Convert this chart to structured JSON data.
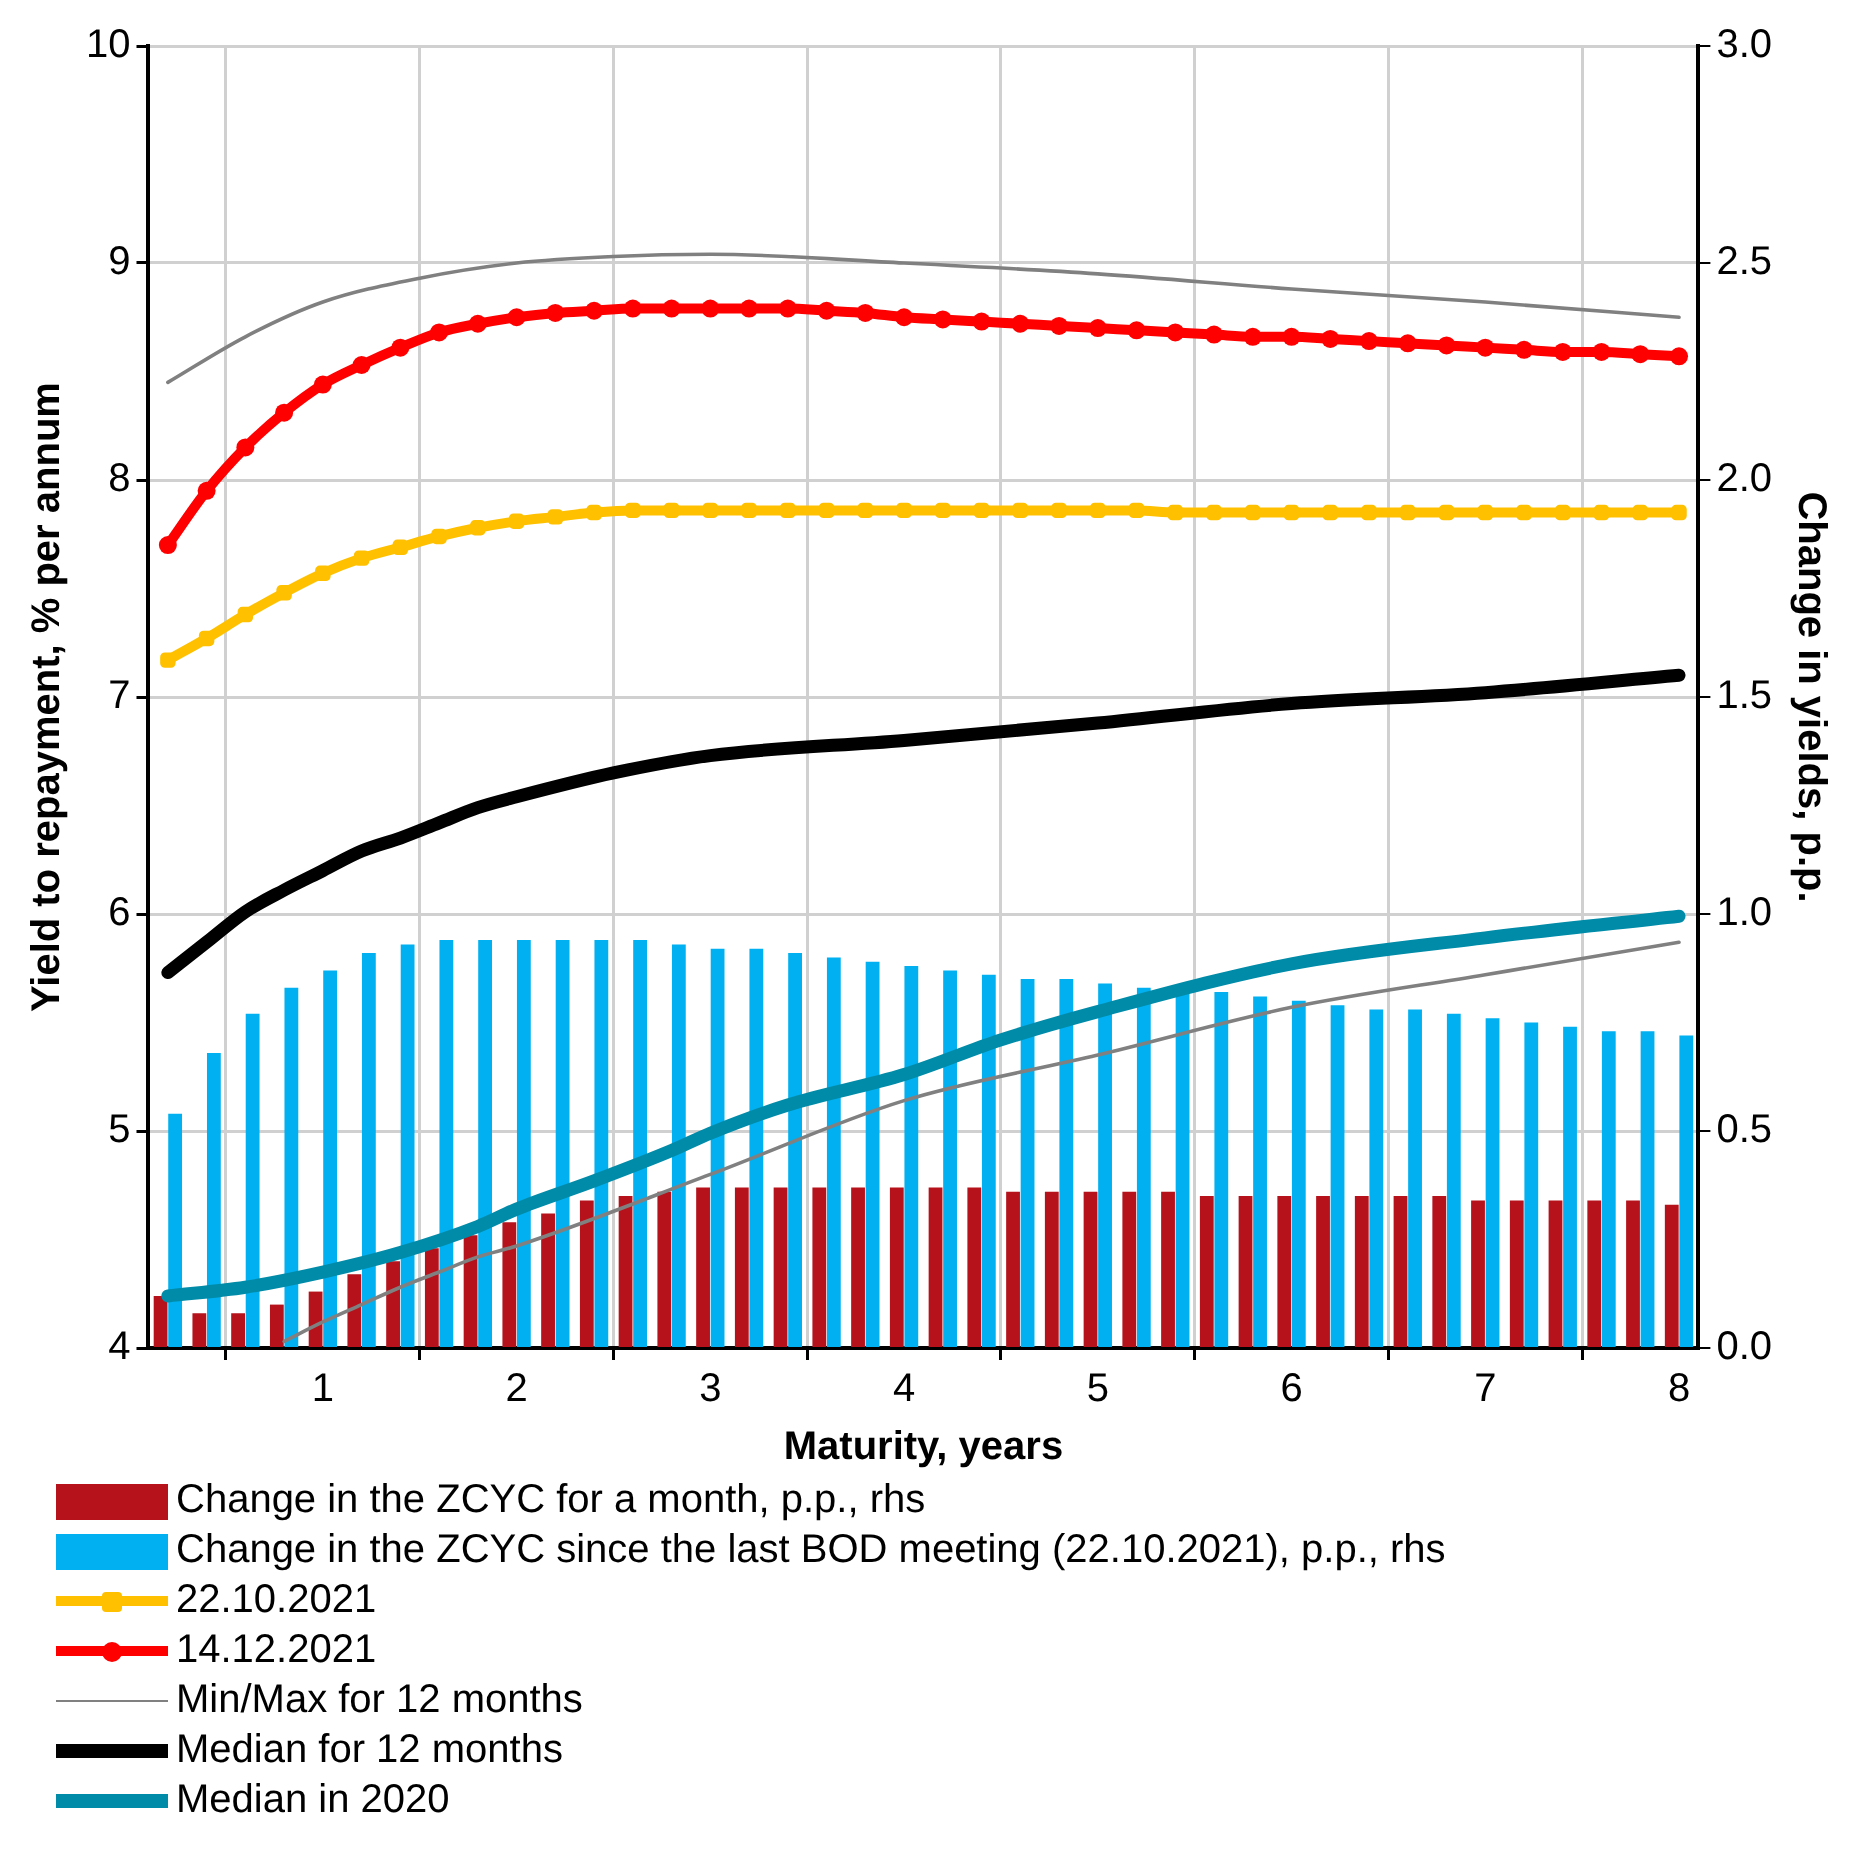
{
  "chart_data": {
    "type": "line",
    "xlabel": "Maturity, years",
    "ylabel": "Yield to repayment, % per annum",
    "y2label": "Change in yields, p.p.",
    "x": [
      0.2,
      0.4,
      0.6,
      0.8,
      1.0,
      1.2,
      1.4,
      1.6,
      1.8,
      2.0,
      2.2,
      2.4,
      2.6,
      2.8,
      3.0,
      3.2,
      3.4,
      3.6,
      3.8,
      4.0,
      4.2,
      4.4,
      4.6,
      4.8,
      5.0,
      5.2,
      5.4,
      5.6,
      5.8,
      6.0,
      6.2,
      6.4,
      6.6,
      6.8,
      7.0,
      7.2,
      7.4,
      7.6,
      7.8,
      8.0
    ],
    "xlim": [
      0.1,
      8.1
    ],
    "xticks": [
      1,
      2,
      3,
      4,
      5,
      6,
      7,
      8
    ],
    "ylim": [
      4,
      10
    ],
    "yticks": [
      4,
      5,
      6,
      7,
      8,
      9,
      10
    ],
    "y2lim": [
      0,
      3
    ],
    "y2ticks": [
      {
        "value": 0,
        "label": "0.0"
      },
      {
        "value": 0.5,
        "label": "0.5"
      },
      {
        "value": 1,
        "label": "1.0"
      },
      {
        "value": 1.5,
        "label": "1.5"
      },
      {
        "value": 2,
        "label": "2.0"
      },
      {
        "value": 2.5,
        "label": "2.5"
      },
      {
        "value": 3,
        "label": "3.0"
      }
    ],
    "grid": true,
    "legend": "bottom",
    "series": [
      {
        "name": "Change in the ZCYC for a month, p.p., rhs",
        "type": "bar",
        "axis": "y2",
        "color": "#b5121b",
        "values": [
          0.12,
          0.08,
          0.08,
          0.1,
          0.13,
          0.17,
          0.2,
          0.23,
          0.26,
          0.29,
          0.31,
          0.34,
          0.35,
          0.36,
          0.37,
          0.37,
          0.37,
          0.37,
          0.37,
          0.37,
          0.37,
          0.37,
          0.36,
          0.36,
          0.36,
          0.36,
          0.36,
          0.35,
          0.35,
          0.35,
          0.35,
          0.35,
          0.35,
          0.35,
          0.34,
          0.34,
          0.34,
          0.34,
          0.34,
          0.33
        ]
      },
      {
        "name": "Change in the ZCYC since the last BOD meeting (22.10.2021), p.p., rhs",
        "type": "bar",
        "axis": "y2",
        "color": "#00b0f0",
        "values": [
          0.54,
          0.68,
          0.77,
          0.83,
          0.87,
          0.91,
          0.93,
          0.94,
          0.94,
          0.94,
          0.94,
          0.94,
          0.94,
          0.93,
          0.92,
          0.92,
          0.91,
          0.9,
          0.89,
          0.88,
          0.87,
          0.86,
          0.85,
          0.85,
          0.84,
          0.83,
          0.82,
          0.82,
          0.81,
          0.8,
          0.79,
          0.78,
          0.78,
          0.77,
          0.76,
          0.75,
          0.74,
          0.73,
          0.73,
          0.72
        ]
      },
      {
        "name": "22.10.2021",
        "marker": "square",
        "color": "#ffc000",
        "values": [
          7.17,
          7.27,
          7.38,
          7.48,
          7.57,
          7.64,
          7.69,
          7.74,
          7.78,
          7.81,
          7.83,
          7.85,
          7.86,
          7.86,
          7.86,
          7.86,
          7.86,
          7.86,
          7.86,
          7.86,
          7.86,
          7.86,
          7.86,
          7.86,
          7.86,
          7.86,
          7.85,
          7.85,
          7.85,
          7.85,
          7.85,
          7.85,
          7.85,
          7.85,
          7.85,
          7.85,
          7.85,
          7.85,
          7.85,
          7.85
        ]
      },
      {
        "name": "14.12.2021",
        "marker": "circle",
        "color": "#ff0000",
        "values": [
          7.7,
          7.95,
          8.15,
          8.31,
          8.44,
          8.53,
          8.61,
          8.68,
          8.72,
          8.75,
          8.77,
          8.78,
          8.79,
          8.79,
          8.79,
          8.79,
          8.79,
          8.78,
          8.77,
          8.75,
          8.74,
          8.73,
          8.72,
          8.71,
          8.7,
          8.69,
          8.68,
          8.67,
          8.66,
          8.66,
          8.65,
          8.64,
          8.63,
          8.62,
          8.61,
          8.6,
          8.59,
          8.59,
          8.58,
          8.57
        ]
      },
      {
        "name": "Min/Max for 12 months",
        "color": "#808080",
        "x": [
          0.2,
          0.6,
          1,
          1.5,
          2,
          2.5,
          3,
          4,
          5,
          6,
          7,
          8
        ],
        "values": [
          8.45,
          8.66,
          8.82,
          8.93,
          9.0,
          9.03,
          9.04,
          9.0,
          8.95,
          8.88,
          8.82,
          8.75
        ]
      },
      {
        "color": "#808080",
        "x": [
          0.8,
          1,
          1.2,
          1.4,
          1.6,
          1.8,
          2,
          3,
          4,
          5,
          6,
          7,
          8
        ],
        "values": [
          4.03,
          4.12,
          4.2,
          4.28,
          4.35,
          4.42,
          4.47,
          4.8,
          5.14,
          5.35,
          5.57,
          5.72,
          5.87
        ]
      },
      {
        "name": "Median for 12 months",
        "color": "#000000",
        "x": [
          0.2,
          0.4,
          0.6,
          0.8,
          1,
          1.2,
          1.4,
          1.6,
          1.8,
          2,
          2.5,
          3,
          4,
          5,
          6,
          7,
          8
        ],
        "values": [
          5.73,
          5.87,
          6.01,
          6.11,
          6.2,
          6.29,
          6.35,
          6.42,
          6.49,
          6.54,
          6.65,
          6.73,
          6.8,
          6.88,
          6.97,
          7.02,
          7.1
        ]
      },
      {
        "name": "Median in 2020",
        "color": "#008ba8",
        "x": [
          0.2,
          0.6,
          1,
          1.4,
          1.8,
          2,
          2.4,
          2.8,
          3,
          3.4,
          4,
          4.5,
          5,
          6,
          7,
          8
        ],
        "values": [
          4.24,
          4.28,
          4.35,
          4.44,
          4.56,
          4.64,
          4.77,
          4.91,
          4.99,
          5.12,
          5.26,
          5.42,
          5.55,
          5.77,
          5.89,
          5.99
        ]
      }
    ]
  }
}
